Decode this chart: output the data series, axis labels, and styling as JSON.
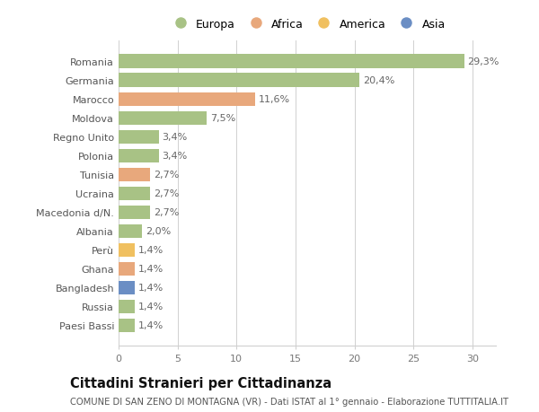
{
  "countries": [
    "Romania",
    "Germania",
    "Marocco",
    "Moldova",
    "Regno Unito",
    "Polonia",
    "Tunisia",
    "Ucraina",
    "Macedonia d/N.",
    "Albania",
    "Perù",
    "Ghana",
    "Bangladesh",
    "Russia",
    "Paesi Bassi"
  ],
  "values": [
    29.3,
    20.4,
    11.6,
    7.5,
    3.4,
    3.4,
    2.7,
    2.7,
    2.7,
    2.0,
    1.4,
    1.4,
    1.4,
    1.4,
    1.4
  ],
  "labels": [
    "29,3%",
    "20,4%",
    "11,6%",
    "7,5%",
    "3,4%",
    "3,4%",
    "2,7%",
    "2,7%",
    "2,7%",
    "2,0%",
    "1,4%",
    "1,4%",
    "1,4%",
    "1,4%",
    "1,4%"
  ],
  "continents": [
    "Europa",
    "Europa",
    "Africa",
    "Europa",
    "Europa",
    "Europa",
    "Africa",
    "Europa",
    "Europa",
    "Europa",
    "America",
    "Africa",
    "Asia",
    "Europa",
    "Europa"
  ],
  "colors": {
    "Europa": "#a8c285",
    "Africa": "#e8a87c",
    "America": "#f0c060",
    "Asia": "#6b8ec4"
  },
  "legend_order": [
    "Europa",
    "Africa",
    "America",
    "Asia"
  ],
  "background_color": "#ffffff",
  "grid_color": "#d0d0d0",
  "title": "Cittadini Stranieri per Cittadinanza",
  "subtitle": "COMUNE DI SAN ZENO DI MONTAGNA (VR) - Dati ISTAT al 1° gennaio - Elaborazione TUTTITALIA.IT",
  "xlim": [
    0,
    32
  ],
  "xticks": [
    0,
    5,
    10,
    15,
    20,
    25,
    30
  ],
  "bar_height": 0.72,
  "label_fontsize": 8.0,
  "tick_fontsize": 8.0,
  "title_fontsize": 10.5,
  "subtitle_fontsize": 7.2
}
